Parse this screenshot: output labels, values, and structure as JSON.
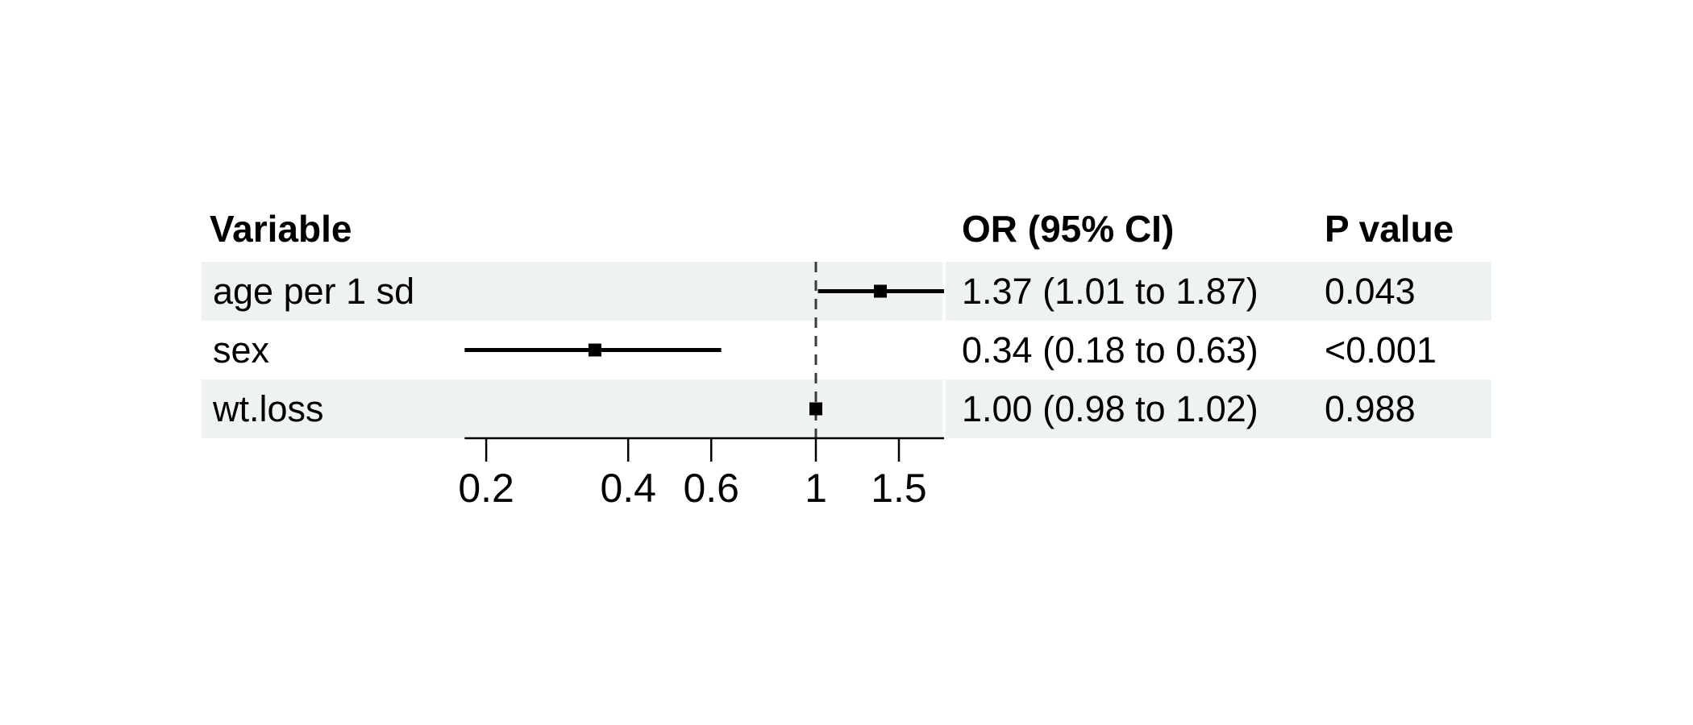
{
  "chart_data": {
    "type": "forest",
    "title": "",
    "columns": {
      "variable": "Variable",
      "or_ci": "OR (95% CI)",
      "p": "P value"
    },
    "rows": [
      {
        "variable": "age per 1 sd",
        "or": 1.37,
        "ci_low": 1.01,
        "ci_high": 1.87,
        "or_ci_label": "1.37 (1.01 to 1.87)",
        "p_label": "0.043",
        "shaded": true
      },
      {
        "variable": "sex",
        "or": 0.34,
        "ci_low": 0.18,
        "ci_high": 0.63,
        "or_ci_label": "0.34 (0.18 to 0.63)",
        "p_label": "<0.001",
        "shaded": false
      },
      {
        "variable": "wt.loss",
        "or": 1.0,
        "ci_low": 0.98,
        "ci_high": 1.02,
        "or_ci_label": "1.00 (0.98 to 1.02)",
        "p_label": "0.988",
        "shaded": true
      }
    ],
    "x_axis": {
      "scale": "log10",
      "ticks": [
        0.2,
        0.4,
        0.6,
        1,
        1.5
      ],
      "tick_labels": [
        "0.2",
        "0.4",
        "0.6",
        "1",
        "1.5"
      ],
      "reference_line": 1,
      "range": [
        0.18,
        1.87
      ],
      "grid": false
    },
    "colors": {
      "background": "#ffffff",
      "row_band": "#eef2f1",
      "text": "#000000",
      "ci_line": "#000000",
      "marker": "#000000",
      "axis": "#000000",
      "reference_line": "#3a3a3a"
    }
  }
}
